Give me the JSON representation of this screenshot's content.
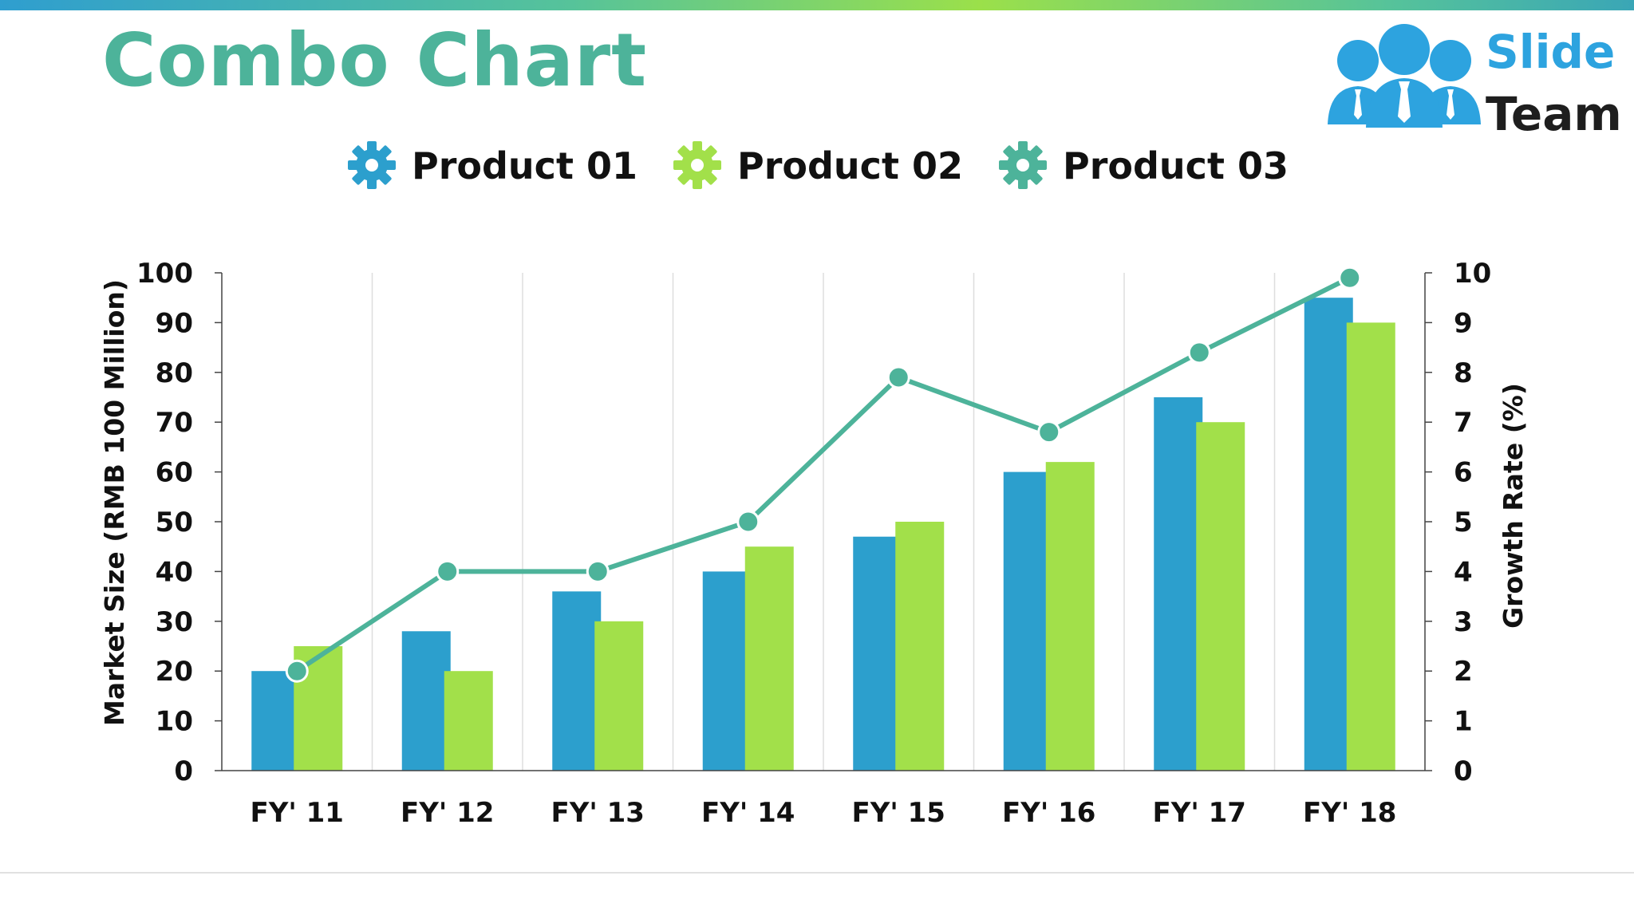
{
  "slide": {
    "title": "Combo Chart",
    "logo": {
      "line1": "Slide",
      "line2": "Team"
    }
  },
  "colors": {
    "title": "#4db39a",
    "product01": "#2c9fcd",
    "product02": "#a2e04a",
    "product03": "#4db39a",
    "logo_blue": "#2da3df"
  },
  "chart_data": {
    "type": "bar",
    "categories": [
      "FY' 11",
      "FY' 12",
      "FY' 13",
      "FY' 14",
      "FY' 15",
      "FY' 16",
      "FY' 17",
      "FY' 18"
    ],
    "series": [
      {
        "name": "Product 01",
        "type": "bar",
        "axis": "left",
        "color": "#2c9fcd",
        "values": [
          20,
          28,
          36,
          40,
          47,
          60,
          75,
          95
        ]
      },
      {
        "name": "Product 02",
        "type": "bar",
        "axis": "left",
        "color": "#a2e04a",
        "values": [
          25,
          20,
          30,
          45,
          50,
          62,
          70,
          90
        ]
      },
      {
        "name": "Product 03",
        "type": "line",
        "axis": "right",
        "color": "#4db39a",
        "values": [
          2,
          4,
          4,
          5,
          7.9,
          6.8,
          8.4,
          9.9
        ]
      }
    ],
    "ylabel": "Market Size (RMB 100 Million)",
    "y2label": "Growth Rate (%)",
    "ylim": [
      0,
      100
    ],
    "y2lim": [
      0,
      10
    ],
    "yticks": [
      "0",
      "10",
      "20",
      "30",
      "40",
      "50",
      "60",
      "70",
      "80",
      "90",
      "100"
    ],
    "y2ticks": [
      "0",
      "1",
      "2",
      "3",
      "4",
      "5",
      "6",
      "7",
      "8",
      "9",
      "10"
    ],
    "legend": "top",
    "grid": "vertical"
  }
}
